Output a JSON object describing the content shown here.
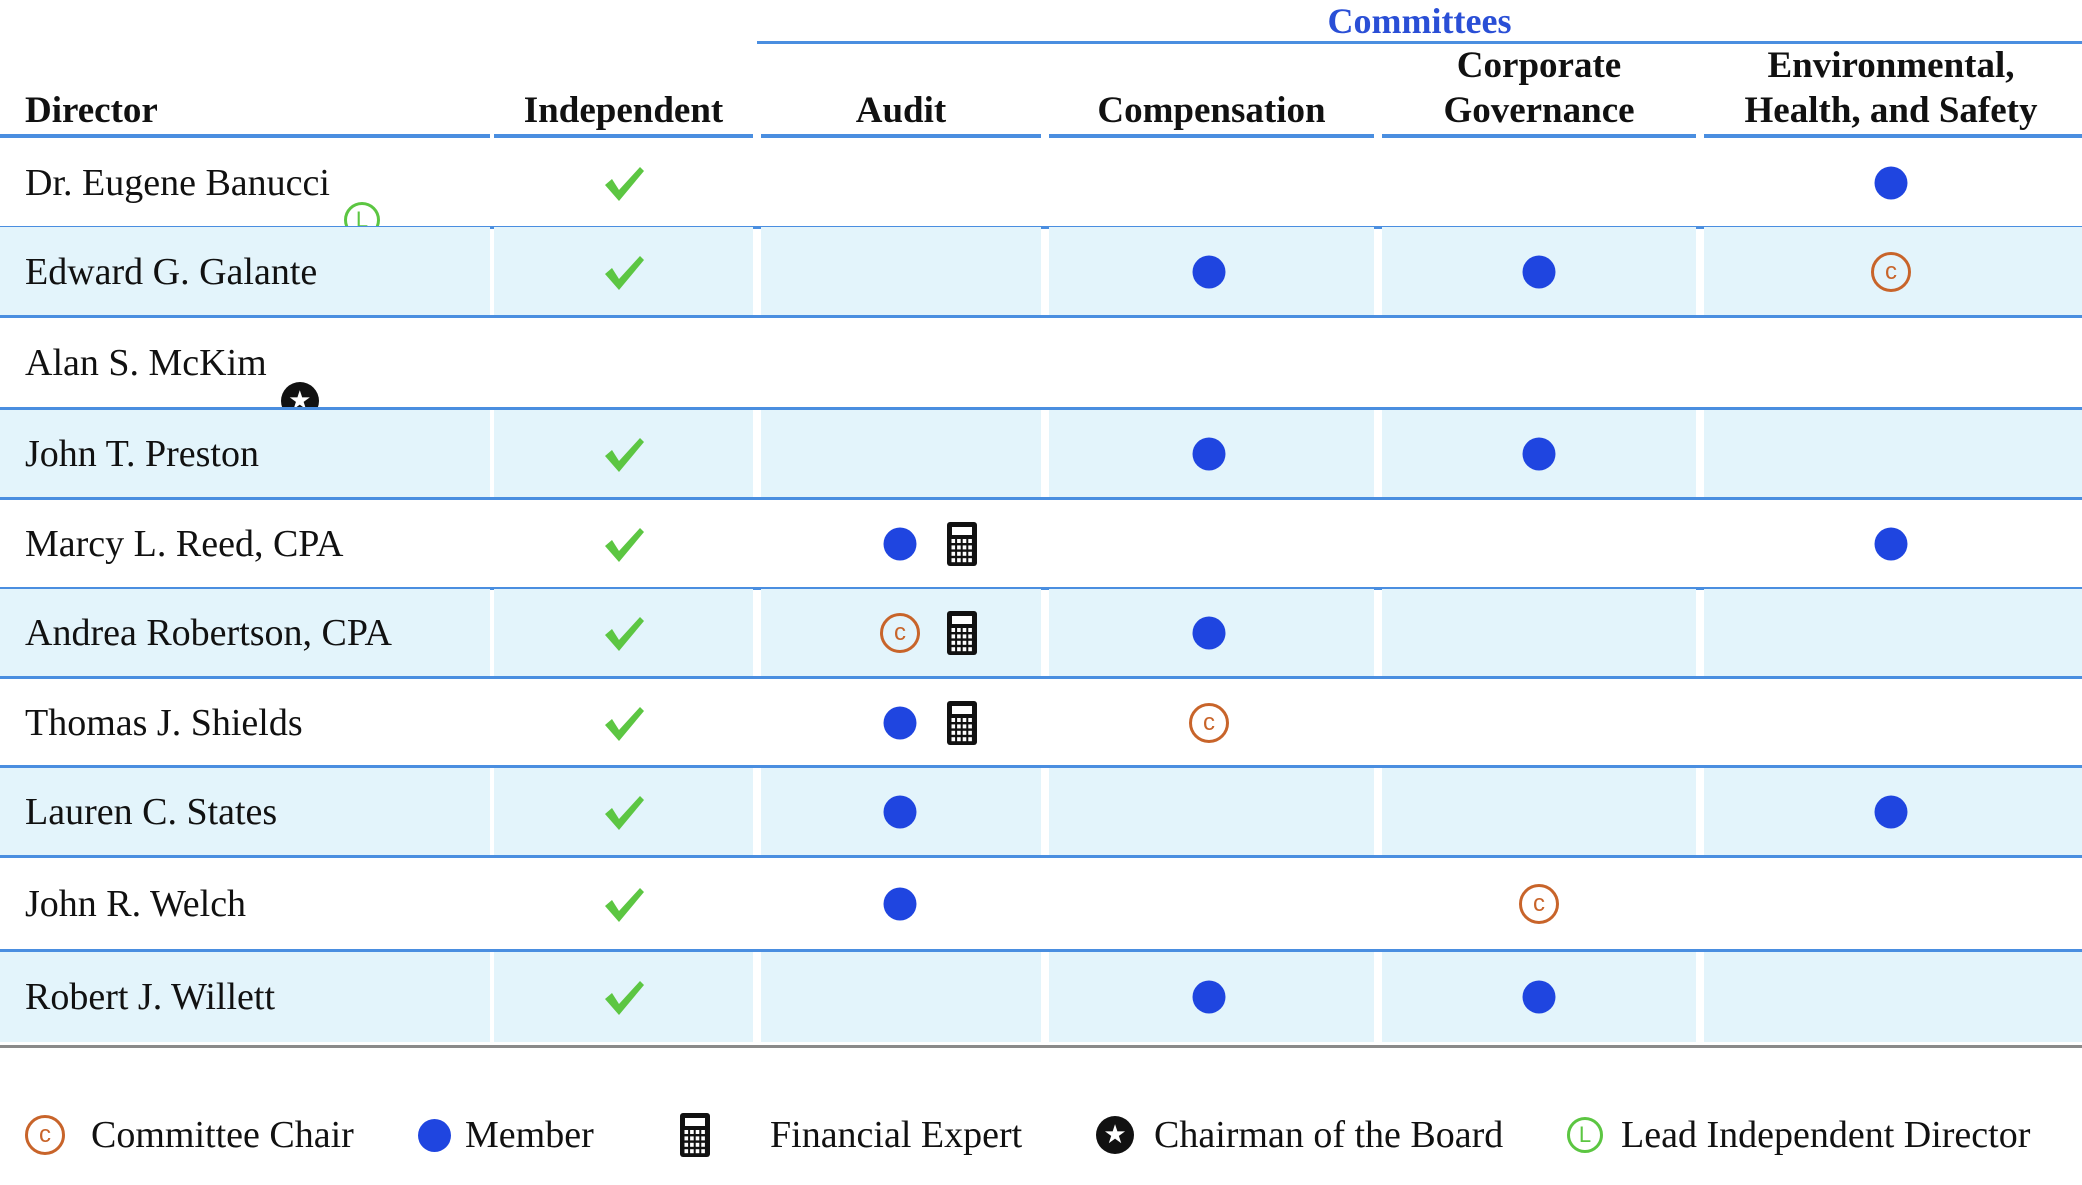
{
  "header": {
    "committees_title": "Committees",
    "columns": {
      "director": "Director",
      "independent": "Independent",
      "audit": "Audit",
      "compensation": "Compensation",
      "governance": "Corporate Governance",
      "ehs": "Environmental, Health, and Safety"
    }
  },
  "icons": {
    "independent": "check-icon",
    "member": "member-dot-icon",
    "chair": "committee-chair-icon",
    "financial_expert": "calculator-icon",
    "chairman": "star-icon",
    "lead_independent": "lead-director-icon"
  },
  "colors": {
    "accent_blue": "#2a4fd6",
    "rule_blue": "#4a8ee0",
    "member_dot": "#1f45e0",
    "chair_orange": "#c8642a",
    "check_green": "#5cc642",
    "row_shade": "#e3f4fb"
  },
  "directors": [
    {
      "name": "Dr. Eugene Banucci",
      "badge": "lead",
      "independent": true,
      "audit": "",
      "audit_expert": false,
      "compensation": "",
      "governance": "",
      "ehs": "member"
    },
    {
      "name": "Edward G. Galante",
      "badge": "",
      "independent": true,
      "audit": "",
      "audit_expert": false,
      "compensation": "member",
      "governance": "member",
      "ehs": "chair"
    },
    {
      "name": "Alan S. McKim",
      "badge": "chairman",
      "independent": false,
      "audit": "",
      "audit_expert": false,
      "compensation": "",
      "governance": "",
      "ehs": ""
    },
    {
      "name": "John T. Preston",
      "badge": "",
      "independent": true,
      "audit": "",
      "audit_expert": false,
      "compensation": "member",
      "governance": "member",
      "ehs": ""
    },
    {
      "name": "Marcy L. Reed, CPA",
      "badge": "",
      "independent": true,
      "audit": "member",
      "audit_expert": true,
      "compensation": "",
      "governance": "",
      "ehs": "member"
    },
    {
      "name": "Andrea Robertson, CPA",
      "badge": "",
      "independent": true,
      "audit": "chair",
      "audit_expert": true,
      "compensation": "member",
      "governance": "",
      "ehs": ""
    },
    {
      "name": "Thomas J. Shields",
      "badge": "",
      "independent": true,
      "audit": "member",
      "audit_expert": true,
      "compensation": "chair",
      "governance": "",
      "ehs": ""
    },
    {
      "name": "Lauren C. States",
      "badge": "",
      "independent": true,
      "audit": "member",
      "audit_expert": false,
      "compensation": "",
      "governance": "",
      "ehs": "member"
    },
    {
      "name": "John R. Welch",
      "badge": "",
      "independent": true,
      "audit": "member",
      "audit_expert": false,
      "compensation": "",
      "governance": "chair",
      "ehs": ""
    },
    {
      "name": "Robert J. Willett",
      "badge": "",
      "independent": true,
      "audit": "",
      "audit_expert": false,
      "compensation": "member",
      "governance": "member",
      "ehs": ""
    }
  ],
  "legend": {
    "chair": "Committee Chair",
    "member": "Member",
    "financial_expert": "Financial Expert",
    "chairman": "Chairman of the Board",
    "lead": "Lead Independent Director"
  }
}
